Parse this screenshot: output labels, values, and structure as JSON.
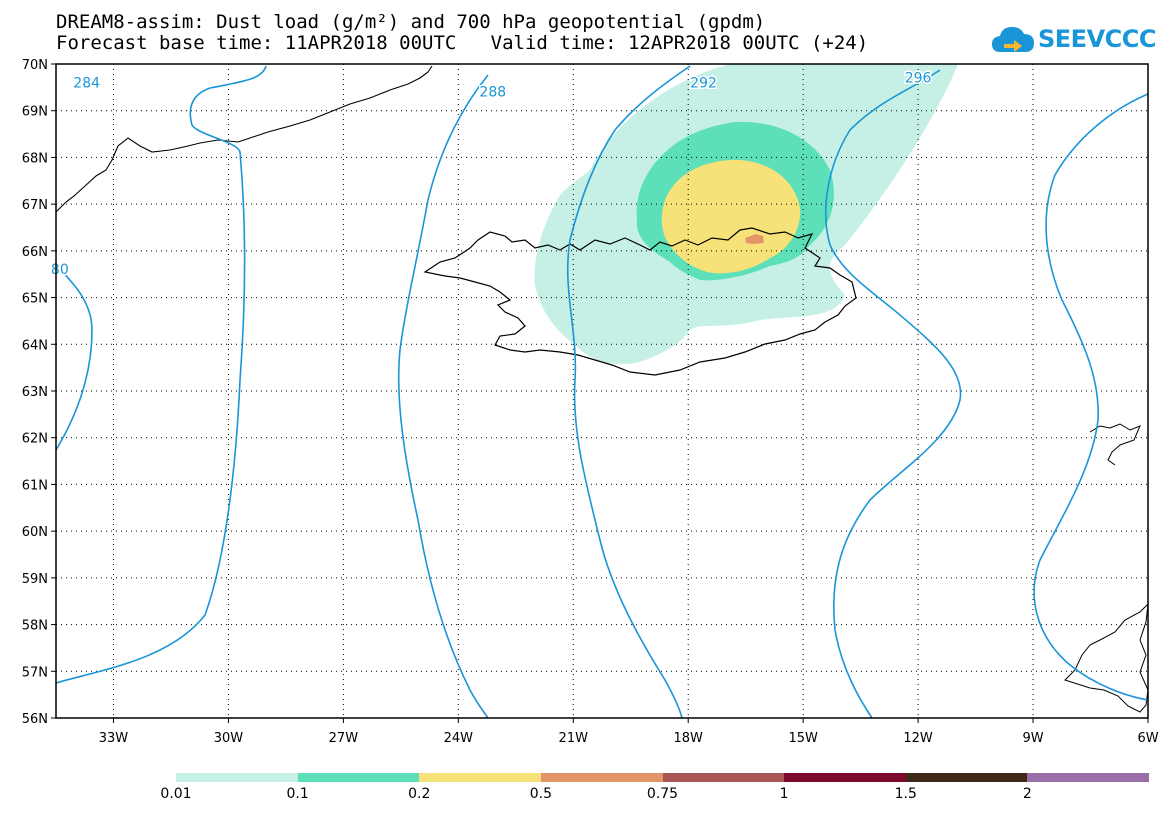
{
  "header": {
    "title_line1": "DREAM8-assim: Dust load (g/m²) and 700 hPa geopotential (gpdm)",
    "title_line2": "Forecast base time: 11APR2018 00UTC   Valid time: 12APR2018 00UTC (+24)"
  },
  "logo": {
    "text": "SEEVCCC",
    "color": "#1a96d8"
  },
  "map": {
    "lon_range": [
      -34.5,
      -6
    ],
    "lat_range": [
      56,
      70
    ],
    "lon_ticks": [
      {
        "value": -33,
        "label": "33W"
      },
      {
        "value": -30,
        "label": "30W"
      },
      {
        "value": -27,
        "label": "27W"
      },
      {
        "value": -24,
        "label": "24W"
      },
      {
        "value": -21,
        "label": "21W"
      },
      {
        "value": -18,
        "label": "18W"
      },
      {
        "value": -15,
        "label": "15W"
      },
      {
        "value": -12,
        "label": "12W"
      },
      {
        "value": -9,
        "label": "9W"
      },
      {
        "value": -6,
        "label": "6W"
      }
    ],
    "lat_ticks": [
      {
        "value": 70,
        "label": "70N"
      },
      {
        "value": 69,
        "label": "69N"
      },
      {
        "value": 68,
        "label": "68N"
      },
      {
        "value": 67,
        "label": "67N"
      },
      {
        "value": 66,
        "label": "66N"
      },
      {
        "value": 65,
        "label": "65N"
      },
      {
        "value": 64,
        "label": "64N"
      },
      {
        "value": 63,
        "label": "63N"
      },
      {
        "value": 62,
        "label": "62N"
      },
      {
        "value": 61,
        "label": "61N"
      },
      {
        "value": 60,
        "label": "60N"
      },
      {
        "value": 59,
        "label": "59N"
      },
      {
        "value": 58,
        "label": "58N"
      },
      {
        "value": 57,
        "label": "57N"
      },
      {
        "value": 56,
        "label": "56N"
      }
    ],
    "contour_color": "#1a96d8",
    "contour_labels": [
      {
        "text": "284",
        "lon": -33.7,
        "lat": 69.5
      },
      {
        "text": "288",
        "lon": -23.1,
        "lat": 69.3
      },
      {
        "text": "292",
        "lon": -17.6,
        "lat": 69.5
      },
      {
        "text": "296",
        "lon": -12.0,
        "lat": 69.6
      },
      {
        "text": "80",
        "lon": -34.4,
        "lat": 65.5
      }
    ]
  },
  "legend": {
    "bins": [
      {
        "color": "#c6f0e6"
      },
      {
        "color": "#5ddfb9"
      },
      {
        "color": "#f7e27a"
      },
      {
        "color": "#e39468"
      },
      {
        "color": "#a85555"
      },
      {
        "color": "#7d0a2c"
      },
      {
        "color": "#3d2915"
      },
      {
        "color": "#9a6fa8"
      }
    ],
    "labels": [
      "0.01",
      "0.1",
      "0.2",
      "0.5",
      "0.75",
      "1",
      "1.5",
      "2"
    ]
  }
}
